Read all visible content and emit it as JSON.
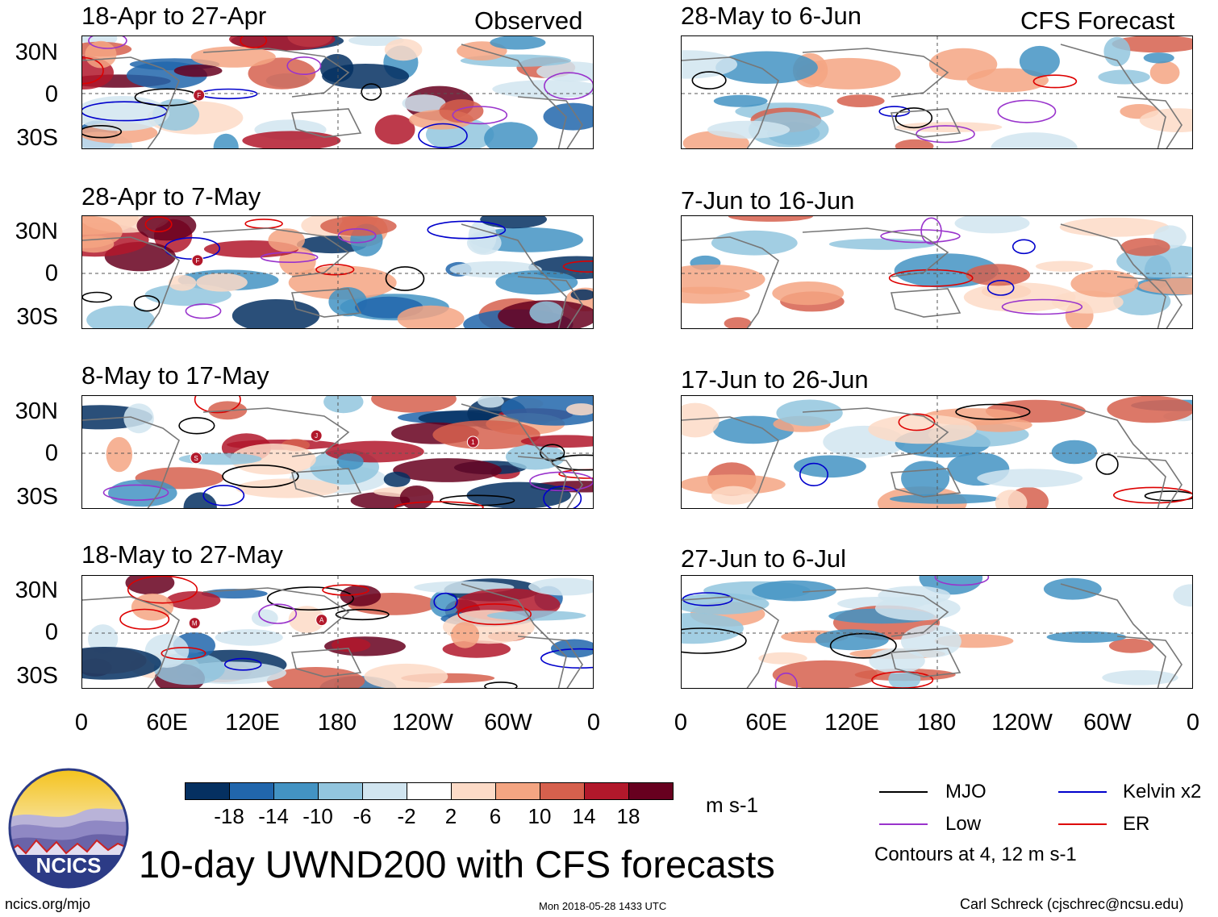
{
  "column_labels": {
    "left": "Observed",
    "right": "CFS Forecast"
  },
  "panels": [
    {
      "title": "18-Apr to 27-Apr",
      "column": "observed",
      "storm_marks": [
        "F"
      ]
    },
    {
      "title": "28-Apr to 7-May",
      "column": "observed",
      "storm_marks": [
        "F"
      ]
    },
    {
      "title": "8-May to 17-May",
      "column": "observed",
      "storm_marks": [
        "S",
        "J",
        "1"
      ]
    },
    {
      "title": "18-May to 27-May",
      "column": "observed",
      "storm_marks": [
        "M",
        "A"
      ]
    },
    {
      "title": "28-May to 6-Jun",
      "column": "forecast",
      "storm_marks": []
    },
    {
      "title": "7-Jun to 16-Jun",
      "column": "forecast",
      "storm_marks": []
    },
    {
      "title": "17-Jun to 26-Jun",
      "column": "forecast",
      "storm_marks": []
    },
    {
      "title": "27-Jun to 6-Jul",
      "column": "forecast",
      "storm_marks": []
    }
  ],
  "lat_labels": [
    "30N",
    "0",
    "30S"
  ],
  "lon_labels": [
    "0",
    "60E",
    "120E",
    "180",
    "120W",
    "60W",
    "0"
  ],
  "colorbar": {
    "colors": [
      "#053061",
      "#2166ac",
      "#4393c3",
      "#92c5de",
      "#d1e5f0",
      "#ffffff",
      "#fddbc7",
      "#f4a582",
      "#d6604d",
      "#b2182b",
      "#67001f"
    ],
    "tick_labels": [
      "-18",
      "-14",
      "-10",
      "-6",
      "-2",
      "2",
      "6",
      "10",
      "14",
      "18"
    ],
    "units": "m s-1"
  },
  "legend": {
    "items": [
      {
        "label": "MJO",
        "color": "#000000"
      },
      {
        "label": "Kelvin x2",
        "color": "#0000cc"
      },
      {
        "label": "Low",
        "color": "#9933cc"
      },
      {
        "label": "ER",
        "color": "#dd0000"
      }
    ],
    "note": "Contours at 4, 12 m s-1"
  },
  "logo_text": "NCICS",
  "main_title": "10-day UWND200 with CFS forecasts",
  "footer": {
    "left": "ncics.org/mjo",
    "center": "Mon 2018-05-28 1433 UTC",
    "right": "Carl Schreck (cjschrec@ncsu.edu)"
  }
}
